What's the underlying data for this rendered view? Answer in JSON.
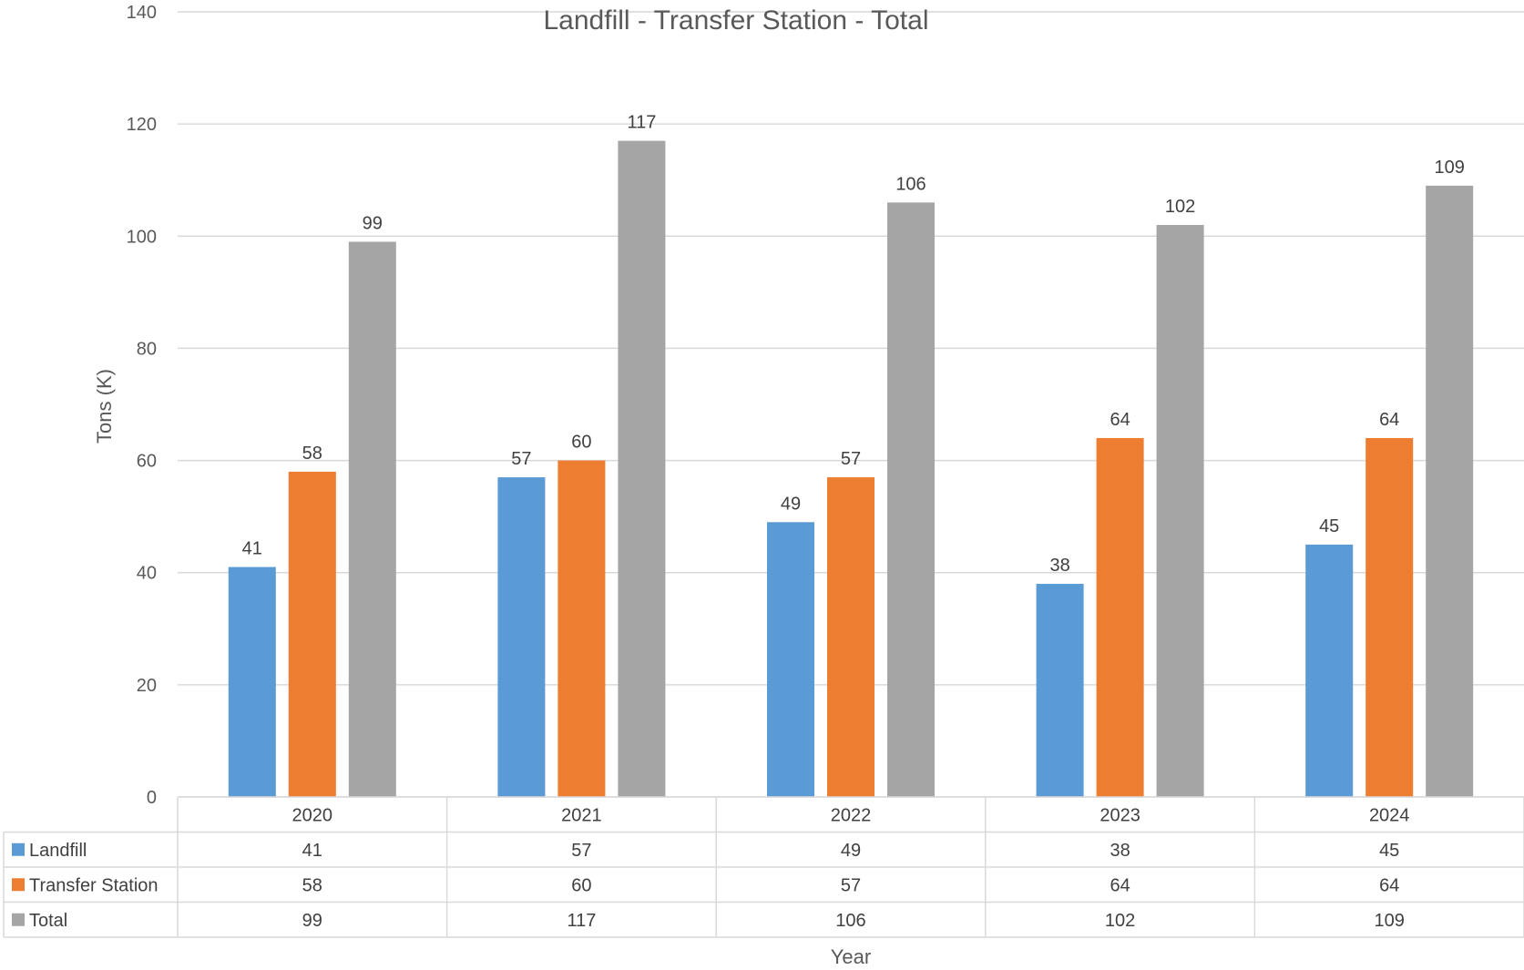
{
  "chart_data": {
    "type": "bar",
    "title": "Landfill - Transfer Station - Total",
    "xlabel": "Year",
    "ylabel": "Tons (K)",
    "ylim": [
      0,
      140
    ],
    "yticks": [
      0,
      20,
      40,
      60,
      80,
      100,
      120,
      140
    ],
    "grid": true,
    "legend": "data-table",
    "categories": [
      "2020",
      "2021",
      "2022",
      "2023",
      "2024"
    ],
    "series": [
      {
        "name": "Landfill",
        "color": "#5B9BD5",
        "values": [
          41,
          57,
          49,
          38,
          45
        ]
      },
      {
        "name": "Transfer Station",
        "color": "#ED7D31",
        "values": [
          58,
          60,
          57,
          64,
          64
        ]
      },
      {
        "name": "Total",
        "color": "#A5A5A5",
        "values": [
          99,
          117,
          106,
          102,
          109
        ]
      }
    ]
  }
}
